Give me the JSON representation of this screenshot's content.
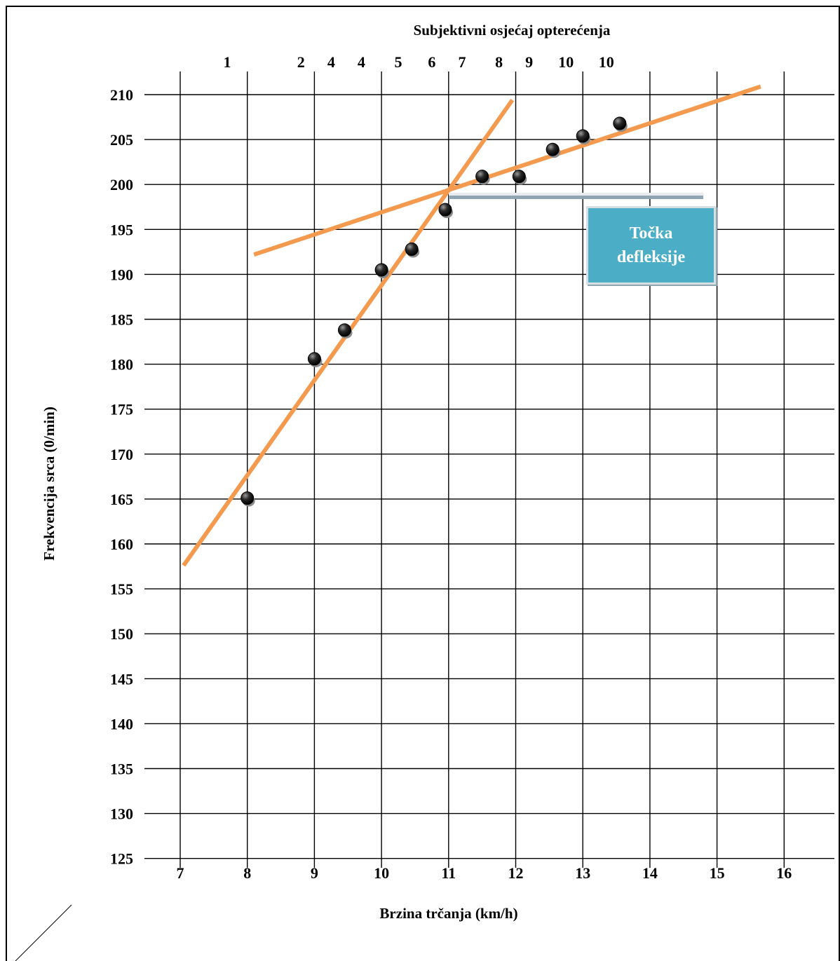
{
  "chart_data": {
    "type": "scatter",
    "title": "Subjektivni osjećaj opterećenja",
    "xlabel": "Brzina trčanja (km/h)",
    "ylabel": "Frekvencija srca (0/min)",
    "x_ticks": [
      "7",
      "8",
      "9",
      "10",
      "11",
      "12",
      "13",
      "14",
      "15",
      "16"
    ],
    "y_ticks": [
      "210",
      "205",
      "200",
      "195",
      "190",
      "185",
      "180",
      "175",
      "170",
      "165",
      "160",
      "155",
      "150",
      "145",
      "140",
      "135",
      "130",
      "125"
    ],
    "xlim": [
      7,
      16
    ],
    "ylim": [
      125,
      210
    ],
    "grid": true,
    "top_scale": [
      {
        "label": "1",
        "x": 7.7
      },
      {
        "label": "2",
        "x": 8.8
      },
      {
        "label": "4",
        "x": 9.25
      },
      {
        "label": "4",
        "x": 9.7
      },
      {
        "label": "5",
        "x": 10.25
      },
      {
        "label": "6",
        "x": 10.75
      },
      {
        "label": "7",
        "x": 11.2
      },
      {
        "label": "8",
        "x": 11.75
      },
      {
        "label": "9",
        "x": 12.2
      },
      {
        "label": "10",
        "x": 12.75
      },
      {
        "label": "10",
        "x": 13.35
      }
    ],
    "points": [
      {
        "x": 8.0,
        "y": 165.1
      },
      {
        "x": 9.0,
        "y": 180.6
      },
      {
        "x": 9.45,
        "y": 183.8
      },
      {
        "x": 10.0,
        "y": 190.5
      },
      {
        "x": 10.45,
        "y": 192.8
      },
      {
        "x": 10.95,
        "y": 197.2
      },
      {
        "x": 11.5,
        "y": 200.9
      },
      {
        "x": 12.05,
        "y": 200.9
      },
      {
        "x": 12.55,
        "y": 203.9
      },
      {
        "x": 13.0,
        "y": 205.4
      },
      {
        "x": 13.55,
        "y": 206.8
      }
    ],
    "lines": [
      {
        "x1": 7.05,
        "y1": 157.6,
        "x2": 11.95,
        "y2": 209.4
      },
      {
        "x1": 8.1,
        "y1": 192.2,
        "x2": 15.65,
        "y2": 210.9
      }
    ],
    "colors": {
      "fit_line": "#f39a4f",
      "point": "#1f1f1f",
      "callout": "#4badc6"
    }
  },
  "callout": {
    "line1": "Točka",
    "line2": "defleksije"
  }
}
